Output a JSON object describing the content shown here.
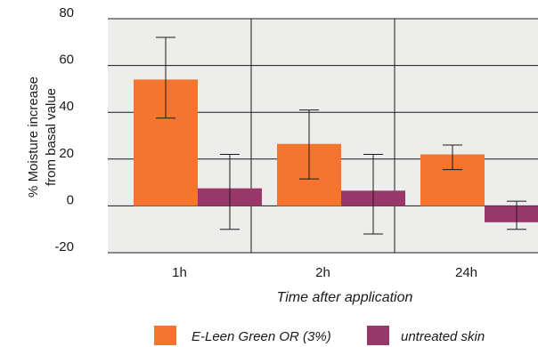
{
  "chart_data": {
    "type": "bar",
    "categories": [
      "1h",
      "2h",
      "24h"
    ],
    "series": [
      {
        "name": "E-Leen Green OR (3%)",
        "color": "#F47430",
        "values": [
          54,
          26.5,
          22
        ],
        "err_low": [
          37.5,
          11.5,
          15.5
        ],
        "err_high": [
          72,
          41,
          26
        ]
      },
      {
        "name": "untreated skin",
        "color": "#98386A",
        "values": [
          7.5,
          6.5,
          -7
        ],
        "err_low": [
          -10,
          -12,
          -10
        ],
        "err_high": [
          22,
          22,
          2
        ]
      }
    ],
    "ylim": [
      -20,
      80
    ],
    "yticks": [
      -20,
      0,
      20,
      40,
      60,
      80
    ],
    "ylabel_line1": "% Moisture increase",
    "ylabel_line2": "from basal value",
    "xlabel": "Time after application",
    "plot_background": "#EDEDEB",
    "grid": true,
    "legend_position": "bottom"
  }
}
